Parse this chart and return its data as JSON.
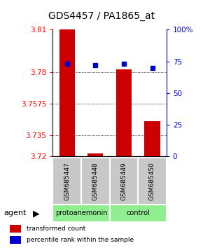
{
  "title": "GDS4457 / PA1865_at",
  "samples": [
    "GSM685447",
    "GSM685448",
    "GSM685449",
    "GSM685450"
  ],
  "bar_values": [
    3.81,
    3.722,
    3.782,
    3.745
  ],
  "percentile_values": [
    73,
    72,
    73,
    70
  ],
  "ymin": 3.72,
  "ymax": 3.81,
  "yticks_left": [
    3.81,
    3.78,
    3.7575,
    3.735,
    3.72
  ],
  "yticks_right": [
    100,
    75,
    50,
    25,
    0
  ],
  "bar_color": "#CC0000",
  "blue_color": "#0000CC",
  "legend_red": "transformed count",
  "legend_blue": "percentile rank within the sample",
  "title_fontsize": 10,
  "bar_width": 0.55,
  "group1_label": "protoanemonin",
  "group2_label": "control",
  "group_color": "#90EE90",
  "sample_box_color": "#C8C8C8",
  "agent_label": "agent"
}
